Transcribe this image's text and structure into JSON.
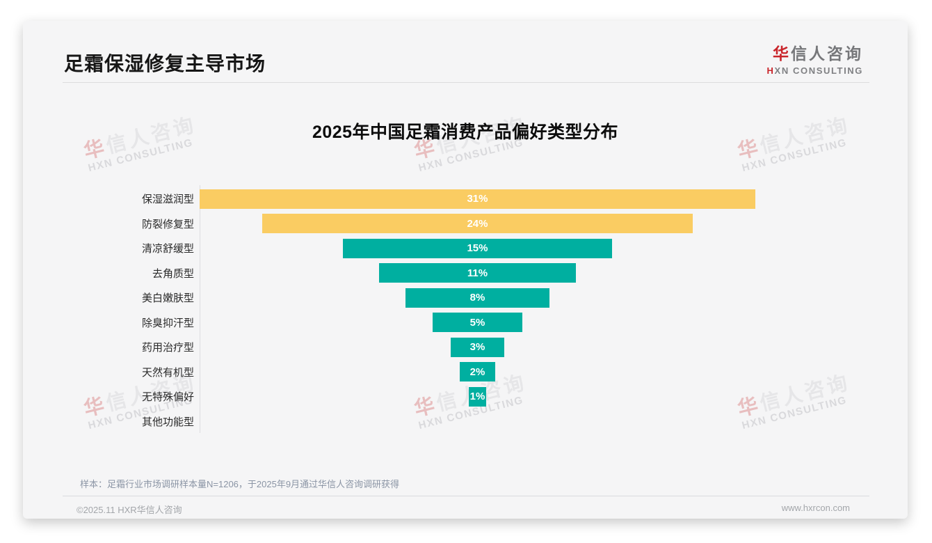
{
  "page": {
    "header": {
      "title": "足霜保湿修复主导市场"
    },
    "logo": {
      "zh_accent": "华",
      "zh_rest": "信人咨询",
      "en_accent": "H",
      "en_rest": "XN CONSULTING"
    },
    "watermark": {
      "zh_accent": "华",
      "zh_rest": "信人咨询",
      "en": "HXN CONSULTING"
    },
    "footnote": "样本：足霜行业市场调研样本量N=1206，于2025年9月通过华信人咨询调研获得",
    "footer": {
      "copyright": "©2025.11 HXR华信人咨询",
      "website": "www.hxrcon.com"
    }
  },
  "chart_data": {
    "type": "bar",
    "subtype": "centered-funnel-horizontal-bars",
    "title": "2025年中国足霜消费产品偏好类型分布",
    "categories": [
      "保湿滋润型",
      "防裂修复型",
      "清凉舒缓型",
      "去角质型",
      "美白嫩肤型",
      "除臭抑汗型",
      "药用治疗型",
      "天然有机型",
      "无特殊偏好",
      "其他功能型"
    ],
    "values": [
      31,
      24,
      15,
      11,
      8,
      5,
      3,
      2,
      1,
      0
    ],
    "value_labels": [
      "31%",
      "24%",
      "15%",
      "11%",
      "8%",
      "5%",
      "3%",
      "2%",
      "1%",
      ""
    ],
    "unit": "%",
    "xlim": [
      0,
      31
    ],
    "grid": false,
    "legend": false,
    "colors": {
      "highlight": "#facc62",
      "default": "#00afa0",
      "highlight_count": 2,
      "bar_label": "#ffffff"
    }
  }
}
